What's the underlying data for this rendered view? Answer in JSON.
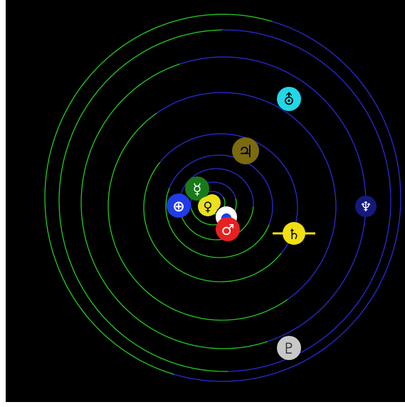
{
  "colors": {
    "background": "#000000",
    "orbit_near": "#2a2ad8",
    "orbit_far": "#22cc22"
  },
  "planets": [
    {
      "name": "Mercury",
      "symbol": "☿",
      "icon": "mercury-icon",
      "fill": "#1a7a1a",
      "text": "#ffffff"
    },
    {
      "name": "Venus",
      "symbol": "♀",
      "icon": "venus-icon",
      "fill": "#e8e020",
      "text": "#000000"
    },
    {
      "name": "Earth",
      "symbol": "⊕",
      "icon": "earth-icon",
      "fill": "#1f3ce8",
      "text": "#ffffff"
    },
    {
      "name": "Moon",
      "symbol": "◓",
      "icon": "moon-icon",
      "fill": "#ffffff",
      "text": "#1f3ce8"
    },
    {
      "name": "Mars",
      "symbol": "♂",
      "icon": "mars-icon",
      "fill": "#e82020",
      "text": "#ffffff"
    },
    {
      "name": "Jupiter",
      "symbol": "♃",
      "icon": "jupiter-icon",
      "fill": "#7a6a10",
      "text": "#000000"
    },
    {
      "name": "Saturn",
      "symbol": "♄",
      "icon": "saturn-icon",
      "fill": "#f0e010",
      "text": "#000000"
    },
    {
      "name": "Uranus",
      "symbol": "⛢",
      "icon": "uranus-icon",
      "fill": "#20d8e8",
      "text": "#000000"
    },
    {
      "name": "Neptune",
      "symbol": "♆",
      "icon": "neptune-icon",
      "fill": "#141a7a",
      "text": "#ffffff"
    },
    {
      "name": "Pluto",
      "symbol": "♇",
      "icon": "pluto-icon",
      "fill": "#c8c8c8",
      "text": "#333333"
    }
  ]
}
